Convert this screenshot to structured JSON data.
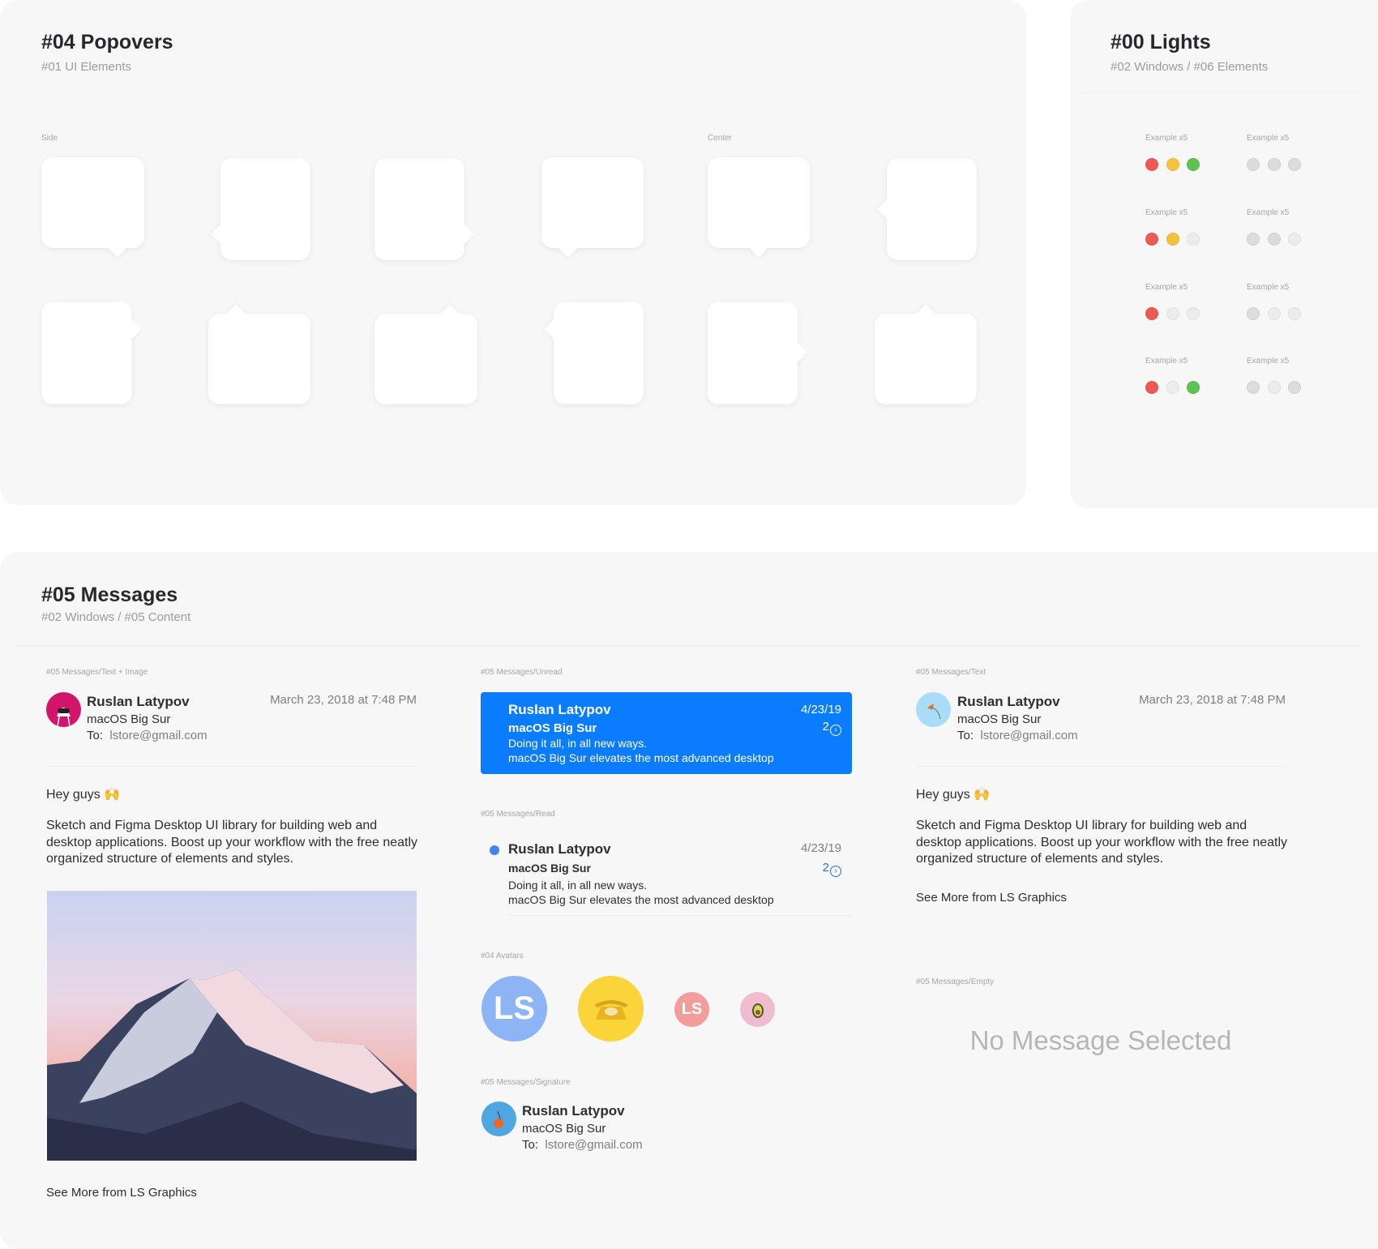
{
  "popovers": {
    "title": "#04 Popovers",
    "subtitle": "#01 UI Elements",
    "label_side": "Side",
    "label_center": "Center"
  },
  "lights": {
    "title": "#00 Lights",
    "subtitle": "#02 Windows / #06 Elements",
    "colors": {
      "close": "#ee5a52",
      "minimize": "#f5c33b",
      "zoom": "#5dc353",
      "inactive": "#dcdcdc",
      "disabled": "#ececec"
    },
    "rows": [
      {
        "label_active": "Example x5",
        "label_inactive": "Example x5",
        "active": [
          "close",
          "minimize",
          "zoom"
        ],
        "inactive": [
          "inactive",
          "inactive",
          "inactive"
        ]
      },
      {
        "label_active": "Example x5",
        "label_inactive": "Example x5",
        "active": [
          "close",
          "minimize",
          "disabled"
        ],
        "inactive": [
          "inactive",
          "inactive",
          "disabled"
        ]
      },
      {
        "label_active": "Example x5",
        "label_inactive": "Example x5",
        "active": [
          "close",
          "disabled",
          "disabled"
        ],
        "inactive": [
          "inactive",
          "disabled",
          "disabled"
        ]
      },
      {
        "label_active": "Example x5",
        "label_inactive": "Example x5",
        "active": [
          "close",
          "disabled",
          "zoom"
        ],
        "inactive": [
          "inactive",
          "disabled",
          "inactive"
        ]
      }
    ]
  },
  "messages": {
    "title": "#05 Messages",
    "subtitle": "#02 Windows / #05 Content",
    "accent": "#0a7cff",
    "text_image": {
      "label": "#05 Messages/Text + Image",
      "sender": "Ruslan Latypov",
      "date": "March 23, 2018 at 7:48 PM",
      "subject": "macOS Big Sur",
      "to_label": "To:",
      "to": "lstore@gmail.com",
      "greeting": "Hey guys 🙌",
      "body": "Sketch and Figma Desktop UI library for building web and desktop applications. Boost up your workflow with the free neatly organized structure of elements and styles.",
      "link": "See More from LS Graphics"
    },
    "unread": {
      "label": "#05 Messages/Unread",
      "sender": "Ruslan Latypov",
      "date": "4/23/19",
      "count": "2",
      "subject": "macOS Big Sur",
      "preview1": "Doing it all, in all new ways.",
      "preview2": "macOS Big Sur elevates the most advanced desktop"
    },
    "read": {
      "label": "#05 Messages/Read",
      "sender": "Ruslan Latypov",
      "date": "4/23/19",
      "count": "2",
      "subject": "macOS Big Sur",
      "preview1": "Doing it all, in all new ways.",
      "preview2": "macOS Big Sur elevates the most advanced desktop"
    },
    "avatars": {
      "label": "#04 Avatars",
      "initials_large": "LS",
      "initials_small": "LS"
    },
    "signature": {
      "label": "#05 Messages/Signature",
      "sender": "Ruslan Latypov",
      "subject": "macOS Big Sur",
      "to_label": "To:",
      "to": "lstore@gmail.com"
    },
    "text": {
      "label": "#05 Messages/Text",
      "sender": "Ruslan Latypov",
      "date": "March 23, 2018 at 7:48 PM",
      "subject": "macOS Big Sur",
      "to_label": "To:",
      "to": "lstore@gmail.com",
      "greeting": "Hey guys 🙌",
      "body": "Sketch and Figma Desktop UI library for building web and desktop applications. Boost up your workflow with the free neatly organized structure of elements and styles.",
      "link": "See More from LS Graphics"
    },
    "empty": {
      "label": "#05 Messages/Empty",
      "text": "No Message Selected"
    }
  }
}
